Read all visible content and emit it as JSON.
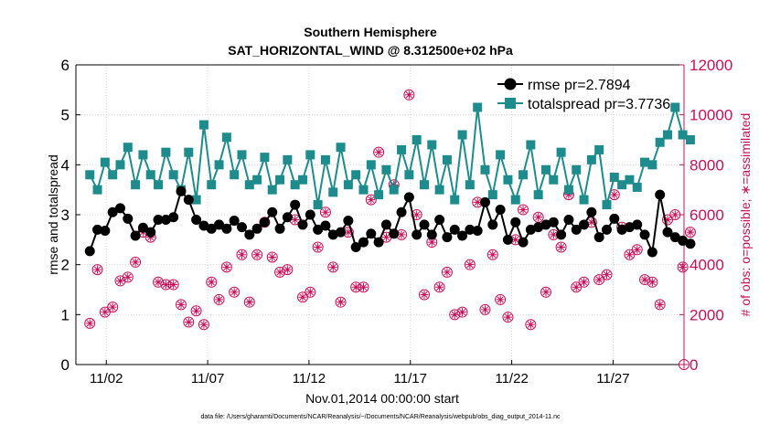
{
  "chart_data": {
    "type": "line",
    "title": "Southern Hemisphere",
    "subtitle": "SAT_HORIZONTAL_WIND @ 8.312500e+02 hPa",
    "xlabel": "Nov.01,2014 00:00:00 start",
    "ylabel_left": "rmse and totalspread",
    "ylabel_right": "# of obs: o=possible; ∗=assimilated",
    "footnote": "data file: /Users/gharamti/Documents/NCAR/Reanalysis/~/Documents/NCAR/Reanalysis/webpub/obs_diag_output_2014-11.nc",
    "xlim": [
      0.5,
      30.5
    ],
    "ylim_left": [
      0,
      6
    ],
    "ylim_right": [
      0,
      12000
    ],
    "x_ticks": [
      {
        "x": 2,
        "label": "11/02"
      },
      {
        "x": 7,
        "label": "11/07"
      },
      {
        "x": 12,
        "label": "11/12"
      },
      {
        "x": 17,
        "label": "11/17"
      },
      {
        "x": 22,
        "label": "11/22"
      },
      {
        "x": 27,
        "label": "11/27"
      }
    ],
    "y_ticks_left": [
      "0",
      "1",
      "2",
      "3",
      "4",
      "5",
      "6"
    ],
    "y_ticks_right": [
      "0",
      "2000",
      "4000",
      "6000",
      "8000",
      "10000",
      "12000"
    ],
    "legend": [
      {
        "name": "rmse",
        "label": "rmse pr=2.7894"
      },
      {
        "name": "totalspread",
        "label": "totalspread pr=3.7736"
      }
    ],
    "series": [
      {
        "name": "rmse",
        "color": "#000000",
        "values": [
          2.27,
          2.7,
          2.68,
          3.05,
          3.13,
          2.92,
          2.58,
          2.74,
          2.65,
          2.9,
          2.9,
          2.95,
          3.47,
          3.3,
          2.9,
          2.78,
          2.72,
          2.8,
          2.72,
          2.88,
          2.75,
          2.6,
          2.72,
          2.85,
          3.05,
          2.72,
          2.95,
          3.2,
          2.8,
          3.0,
          2.7,
          2.78,
          2.6,
          2.65,
          2.88,
          2.35,
          2.45,
          2.62,
          2.45,
          2.8,
          2.62,
          3.05,
          3.35,
          2.6,
          2.8,
          2.6,
          2.9,
          2.55,
          2.7,
          2.58,
          2.7,
          2.68,
          3.25,
          2.8,
          3.1,
          2.5,
          2.85,
          2.45,
          2.7,
          2.75,
          2.8,
          2.85,
          2.6,
          2.9,
          2.7,
          2.8,
          3.05,
          2.55,
          2.7,
          2.92,
          2.7,
          2.75,
          2.8,
          2.6,
          2.25,
          3.4,
          2.65,
          2.55,
          2.48,
          2.42
        ]
      },
      {
        "name": "totalspread",
        "color": "#1e8c8c",
        "values": [
          3.8,
          3.5,
          4.05,
          3.8,
          4.0,
          4.35,
          3.6,
          4.2,
          3.8,
          3.6,
          4.25,
          3.8,
          3.5,
          4.25,
          3.3,
          4.8,
          3.6,
          4.0,
          4.55,
          3.8,
          4.2,
          3.6,
          3.7,
          4.15,
          3.5,
          3.7,
          4.1,
          3.6,
          3.7,
          4.2,
          3.2,
          4.1,
          3.45,
          4.35,
          3.6,
          3.8,
          3.5,
          4.0,
          3.4,
          3.9,
          3.5,
          4.3,
          3.8,
          4.5,
          3.6,
          4.4,
          3.5,
          4.1,
          3.3,
          4.6,
          3.6,
          5.15,
          3.9,
          3.4,
          4.2,
          3.7,
          3.3,
          3.8,
          4.4,
          3.4,
          3.9,
          3.7,
          4.25,
          3.5,
          3.9,
          3.3,
          4.1,
          4.3,
          3.2,
          3.75,
          3.6,
          3.7,
          3.55,
          4.05,
          4.0,
          4.45,
          4.6,
          5.15,
          4.6,
          4.5
        ]
      },
      {
        "name": "obs_possible",
        "color": "#c8105a",
        "values": [
          1650,
          3800,
          2100,
          2300,
          3350,
          3500,
          4100,
          5300,
          5100,
          3300,
          3200,
          3200,
          2400,
          1700,
          2150,
          1600,
          3300,
          2600,
          3900,
          2900,
          4400,
          2500,
          4400,
          5700,
          4300,
          3700,
          3800,
          5800,
          2700,
          2900,
          4700,
          6100,
          3900,
          2500,
          5300,
          3100,
          3100,
          6600,
          8500,
          5100,
          7200,
          5200,
          10800,
          6000,
          2800,
          4900,
          3100,
          3700,
          2000,
          2100,
          4000,
          6500,
          2200,
          4400,
          2600,
          1900,
          5000,
          6200,
          1600,
          5900,
          2900,
          5200,
          4700,
          6800,
          3100,
          3300,
          5700,
          3400,
          3600,
          6800,
          5500,
          4400,
          4600,
          3400,
          3300,
          2400,
          5800,
          6000,
          3900,
          5300
        ]
      }
    ]
  }
}
